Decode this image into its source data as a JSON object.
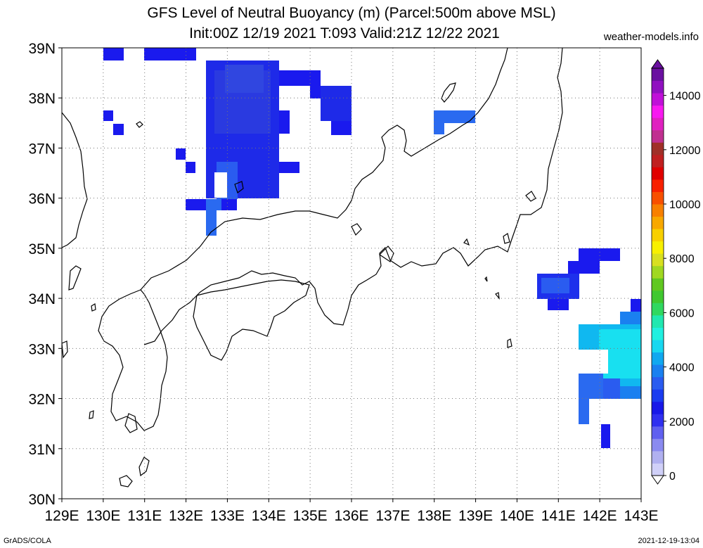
{
  "header": {
    "title_line1": "GFS Level of Neutral Buoyancy (m) (Parcel:500m above MSL)",
    "title_line2": "Init:00Z 12/19 2021 T:093 Valid:21Z 12/22 2021",
    "site": "weather-models.info"
  },
  "footer": {
    "left": "GrADS/COLA",
    "right": "2021-12-19-13:04"
  },
  "map": {
    "lon_labels": [
      "129E",
      "130E",
      "131E",
      "132E",
      "133E",
      "134E",
      "135E",
      "136E",
      "137E",
      "138E",
      "139E",
      "140E",
      "141E",
      "142E",
      "143E"
    ],
    "lat_labels": [
      "39N",
      "38N",
      "37N",
      "36N",
      "35N",
      "34N",
      "33N",
      "32N",
      "31N",
      "30N"
    ],
    "lon_range": [
      129,
      143
    ],
    "lat_range": [
      30,
      39
    ],
    "grid": true
  },
  "colorbar": {
    "labels": [
      "14000",
      "12000",
      "10000",
      "8000",
      "6000",
      "4000",
      "2000",
      "0"
    ],
    "range": [
      0,
      15000
    ],
    "colors": [
      "#d0d0f8",
      "#b0b0f0",
      "#8a8af0",
      "#6060f0",
      "#3030f0",
      "#1818e8",
      "#1a3cf0",
      "#2a5cf0",
      "#1a80f0",
      "#10a8f0",
      "#18d8f0",
      "#20f0e0",
      "#20e8b0",
      "#30d860",
      "#40c830",
      "#60c820",
      "#a0d820",
      "#d8e020",
      "#f8f000",
      "#f8d000",
      "#f8a800",
      "#f88000",
      "#f85000",
      "#f82000",
      "#e00000",
      "#c02020",
      "#a03028",
      "#c03090",
      "#e020c0",
      "#f818f0",
      "#c010d8",
      "#9010c0",
      "#6a10a0"
    ]
  }
}
